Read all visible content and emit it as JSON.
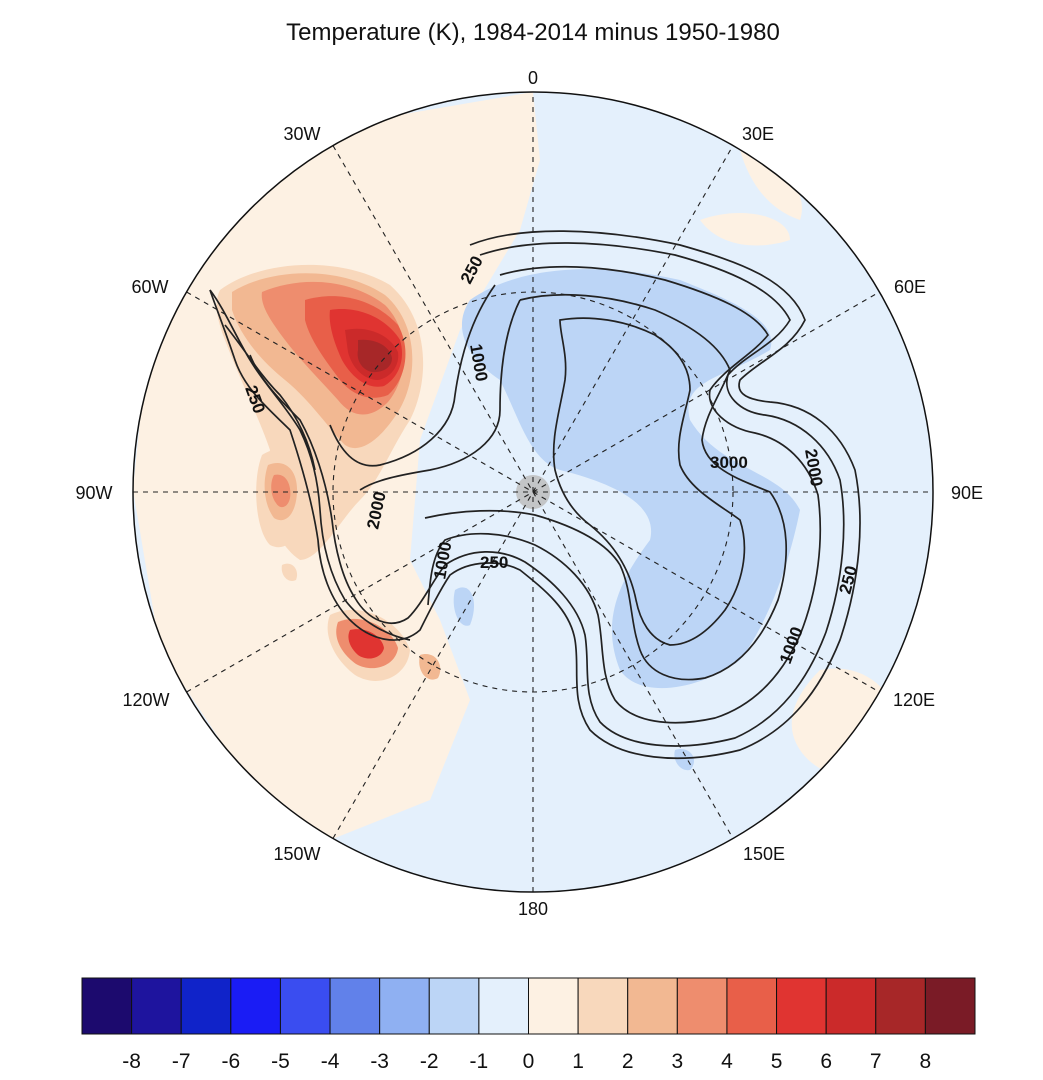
{
  "title": "Temperature (K), 1984-2014 minus 1950-1980",
  "longitude_labels": [
    "0",
    "30E",
    "60E",
    "90E",
    "120E",
    "150E",
    "180",
    "150W",
    "120W",
    "90W",
    "60W",
    "30W"
  ],
  "contour_labels": [
    "250",
    "1000",
    "2000",
    "3000"
  ],
  "colorbar": {
    "labels": [
      "-8",
      "-7",
      "-6",
      "-5",
      "-4",
      "-3",
      "-2",
      "-1",
      "0",
      "1",
      "2",
      "3",
      "4",
      "5",
      "6",
      "7",
      "8"
    ],
    "colors": [
      "#1c0a6e",
      "#1e149e",
      "#1023c9",
      "#1a1cf5",
      "#3a4df0",
      "#6181ea",
      "#8fb0f2",
      "#bcd5f6",
      "#e4f0fc",
      "#fdf1e3",
      "#f8d8bc",
      "#f2b892",
      "#ee8d6e",
      "#e85f49",
      "#e03431",
      "#cb2a2a",
      "#a72728",
      "#7a1b26"
    ]
  },
  "anomaly_colors": {
    "ocean_cool": "#e4f0fc",
    "warm_weak": "#fdf1e3",
    "cool_moderate": "#bcd5f6",
    "warm_1": "#f8d8bc",
    "warm_2": "#f2b892",
    "warm_3": "#ee8d6e",
    "warm_4": "#e85f49",
    "warm_5": "#e03431",
    "warm_6": "#cb2a2a",
    "warm_7": "#a72728"
  }
}
